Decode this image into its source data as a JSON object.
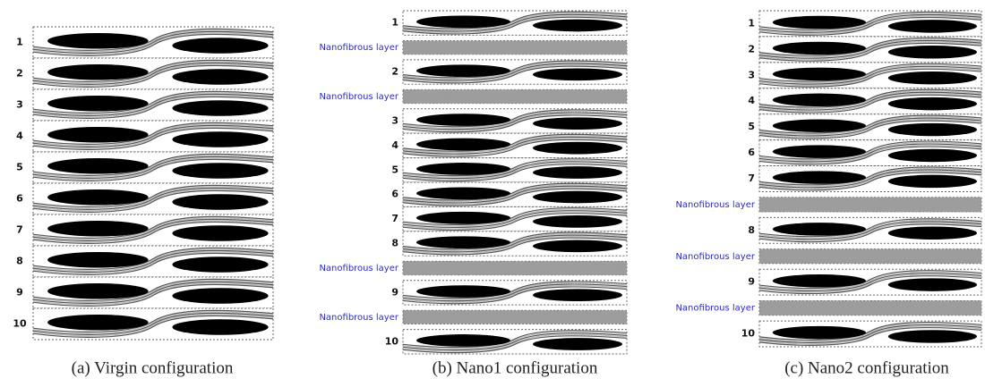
{
  "panels": [
    {
      "caption": "(a) Virgin configuration",
      "layers": [
        "1",
        "2",
        "3",
        "4",
        "5",
        "6",
        "7",
        "8",
        "9",
        "10"
      ]
    },
    {
      "caption": "(b) Nano1 configuration",
      "layers": [
        "1",
        "Nanofibrous layer",
        "2",
        "Nanofibrous layer",
        "3",
        "4",
        "5",
        "6",
        "7",
        "8",
        "Nanofibrous layer",
        "9",
        "Nanofibrous layer",
        "10"
      ]
    },
    {
      "caption": "(c) Nano2 configuration",
      "layers": [
        "1",
        "2",
        "3",
        "4",
        "5",
        "6",
        "7",
        "Nanofibrous layer",
        "8",
        "Nanofibrous layer",
        "9",
        "Nanofibrous layer",
        "10"
      ]
    }
  ]
}
